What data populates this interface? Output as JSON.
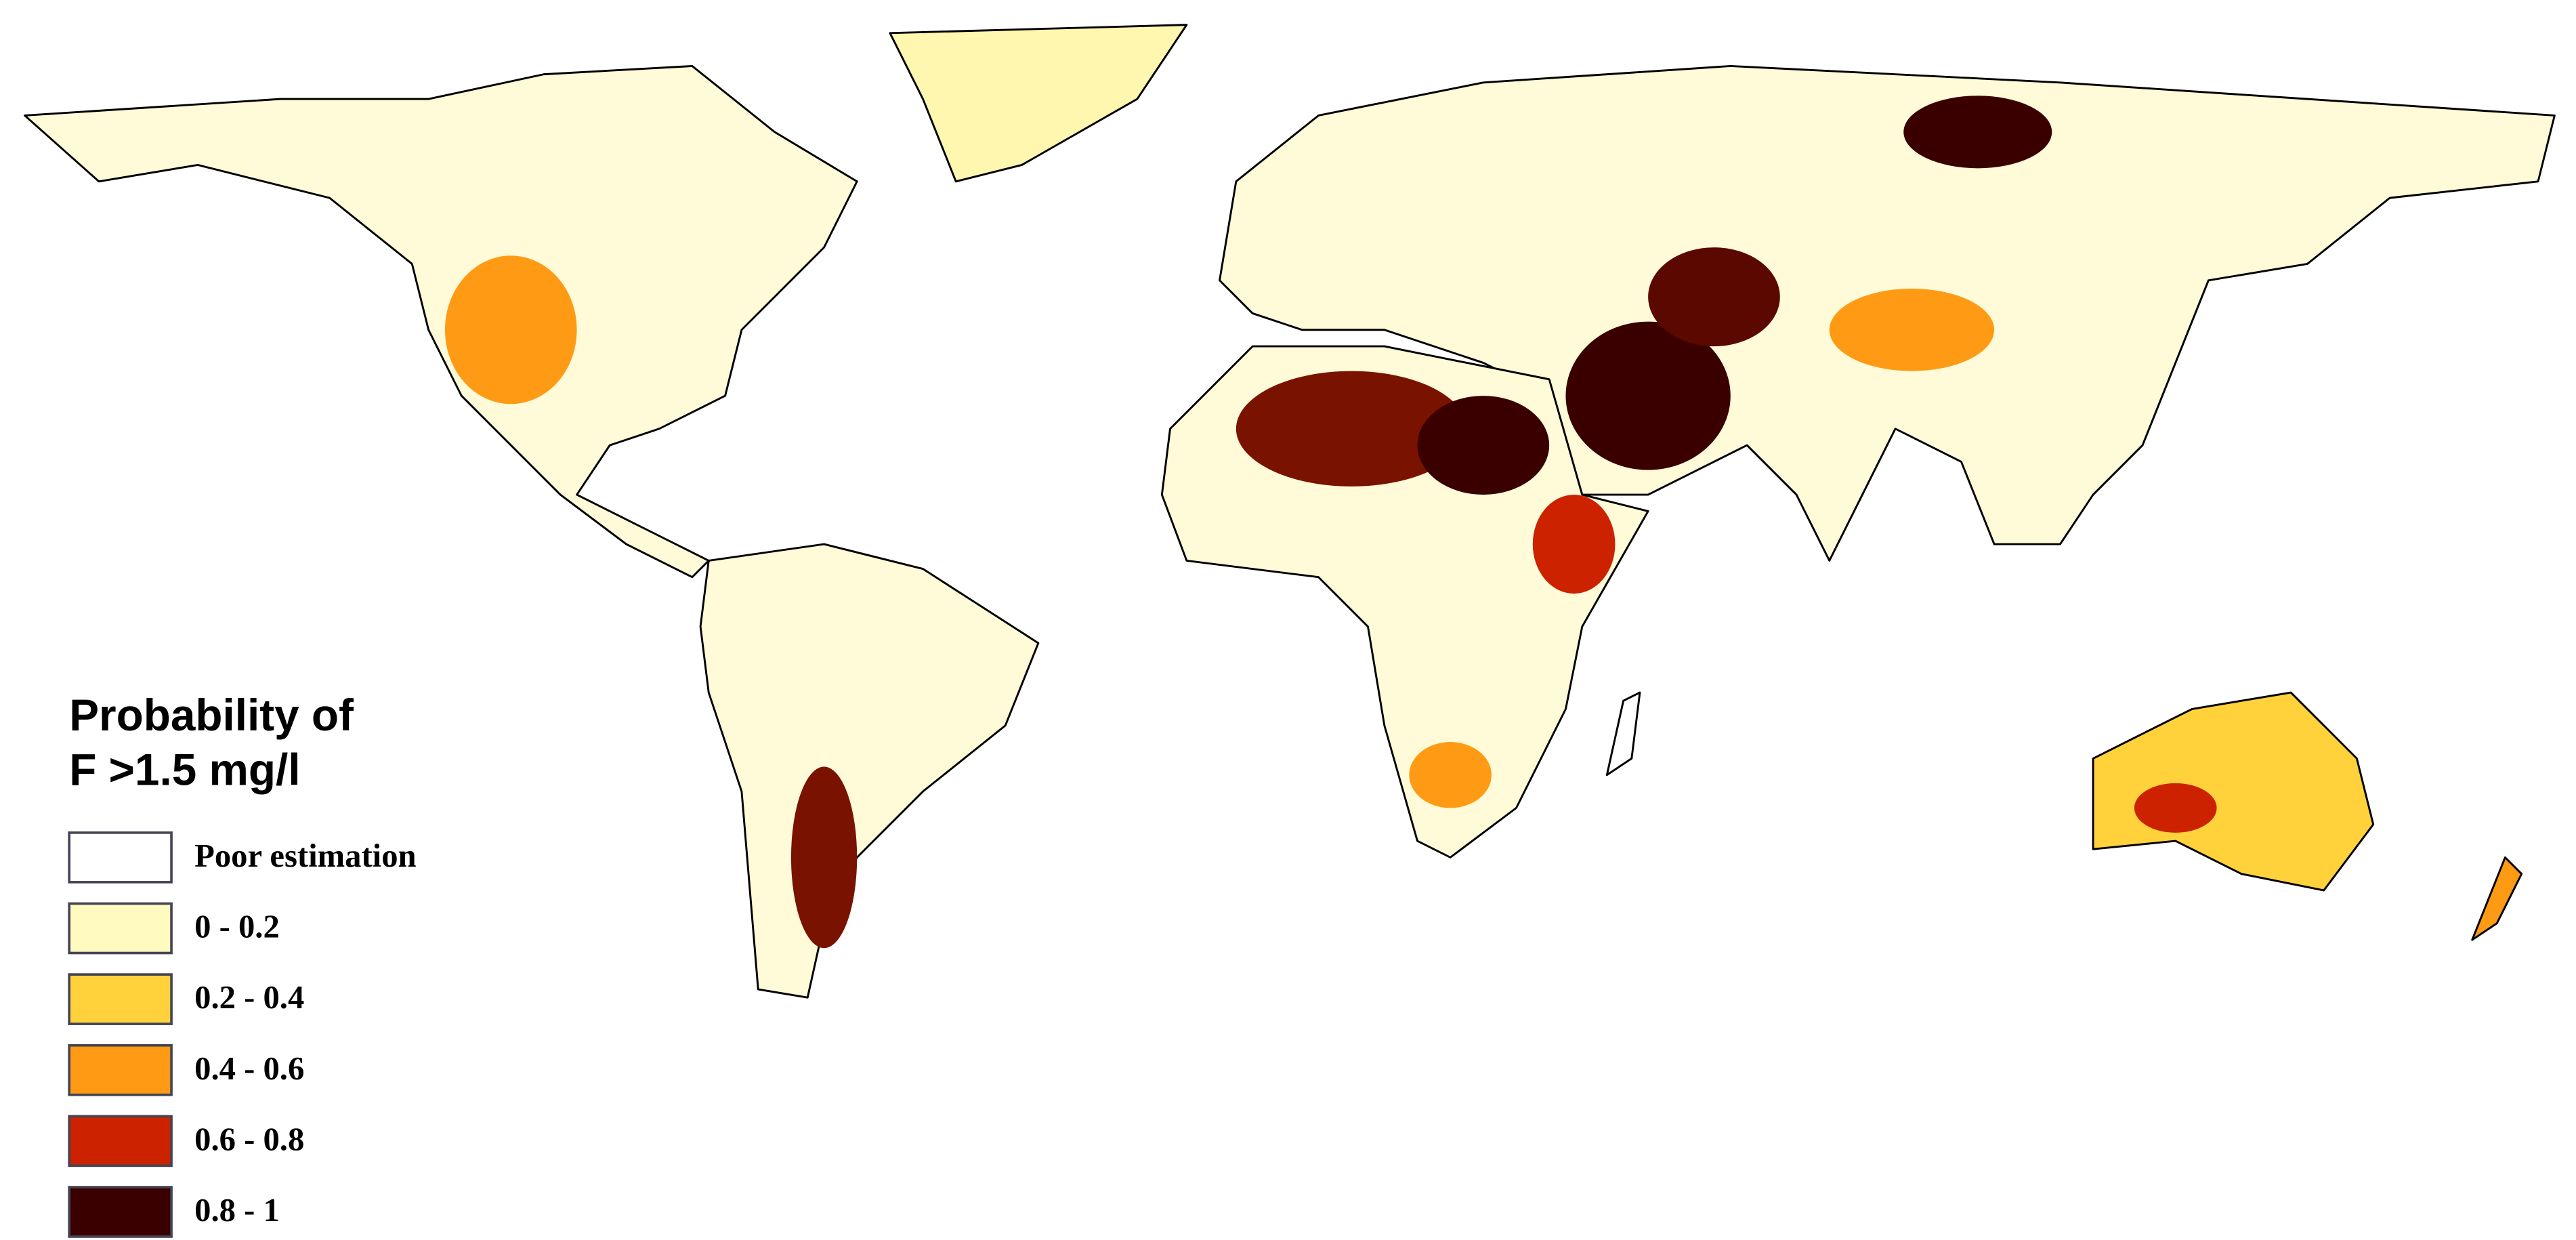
{
  "legend": {
    "title": [
      "Probability of",
      "F >1.5 mg/l"
    ],
    "items": [
      {
        "label": "Poor estimation",
        "color": "#ffffff"
      },
      {
        "label": "0 - 0.2",
        "color": "#fffbc0"
      },
      {
        "label": "0.2 - 0.4",
        "color": "#ffd23c"
      },
      {
        "label": "0.4 - 0.6",
        "color": "#ff9a14"
      },
      {
        "label": "0.6 - 0.8",
        "color": "#cc2200"
      },
      {
        "label": "0.8 - 1",
        "color": "#3a0000"
      }
    ]
  }
}
